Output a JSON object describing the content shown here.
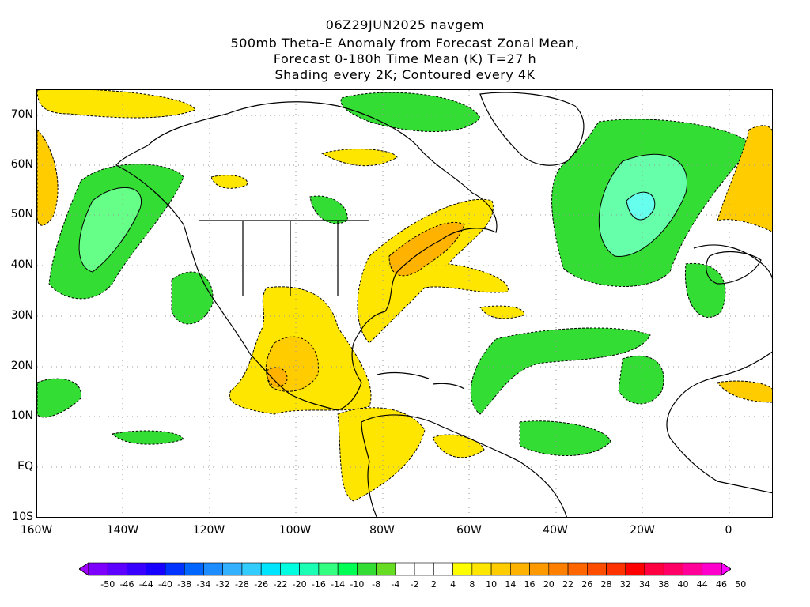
{
  "title": {
    "line1": "06Z29JUN2025 navgem",
    "line2": "500mb Theta-E Anomaly from Forecast Zonal Mean,",
    "line3": "Forecast 0-180h Time Mean (K) T=27 h",
    "line4": "Shading every 2K; Contoured every 4K"
  },
  "lat_labels": [
    "70N",
    "60N",
    "50N",
    "40N",
    "30N",
    "20N",
    "10N",
    "EQ",
    "10S"
  ],
  "lon_labels": [
    "160W",
    "140W",
    "120W",
    "100W",
    "80W",
    "60W",
    "40W",
    "20W",
    "0"
  ],
  "colorbar": {
    "labels": [
      "-50",
      "-46",
      "-44",
      "-40",
      "-38",
      "-34",
      "-32",
      "-28",
      "-26",
      "-22",
      "-20",
      "-16",
      "-14",
      "-10",
      "-8",
      "-4",
      "-2",
      "2",
      "4",
      "8",
      "10",
      "14",
      "16",
      "20",
      "22",
      "26",
      "28",
      "32",
      "34",
      "38",
      "40",
      "44",
      "46",
      "50"
    ],
    "colors": [
      "#9f00ff",
      "#7d00ff",
      "#5c00ff",
      "#3a00ff",
      "#1800ff",
      "#0033ff",
      "#0066ff",
      "#1c8cff",
      "#33b0ff",
      "#33ccff",
      "#00e5ff",
      "#00ffe0",
      "#1affb3",
      "#33ff80",
      "#00ff55",
      "#33dd33",
      "#66dd22",
      "#ffffff",
      "#ffffff",
      "#ffffff",
      "#ffff00",
      "#ffe600",
      "#ffcc00",
      "#ffb300",
      "#ff9900",
      "#ff8000",
      "#ff6600",
      "#ff4d00",
      "#ff3300",
      "#ff0000",
      "#ff0040",
      "#ff0066",
      "#ff0099",
      "#ff00cc",
      "#ff00ff"
    ]
  }
}
